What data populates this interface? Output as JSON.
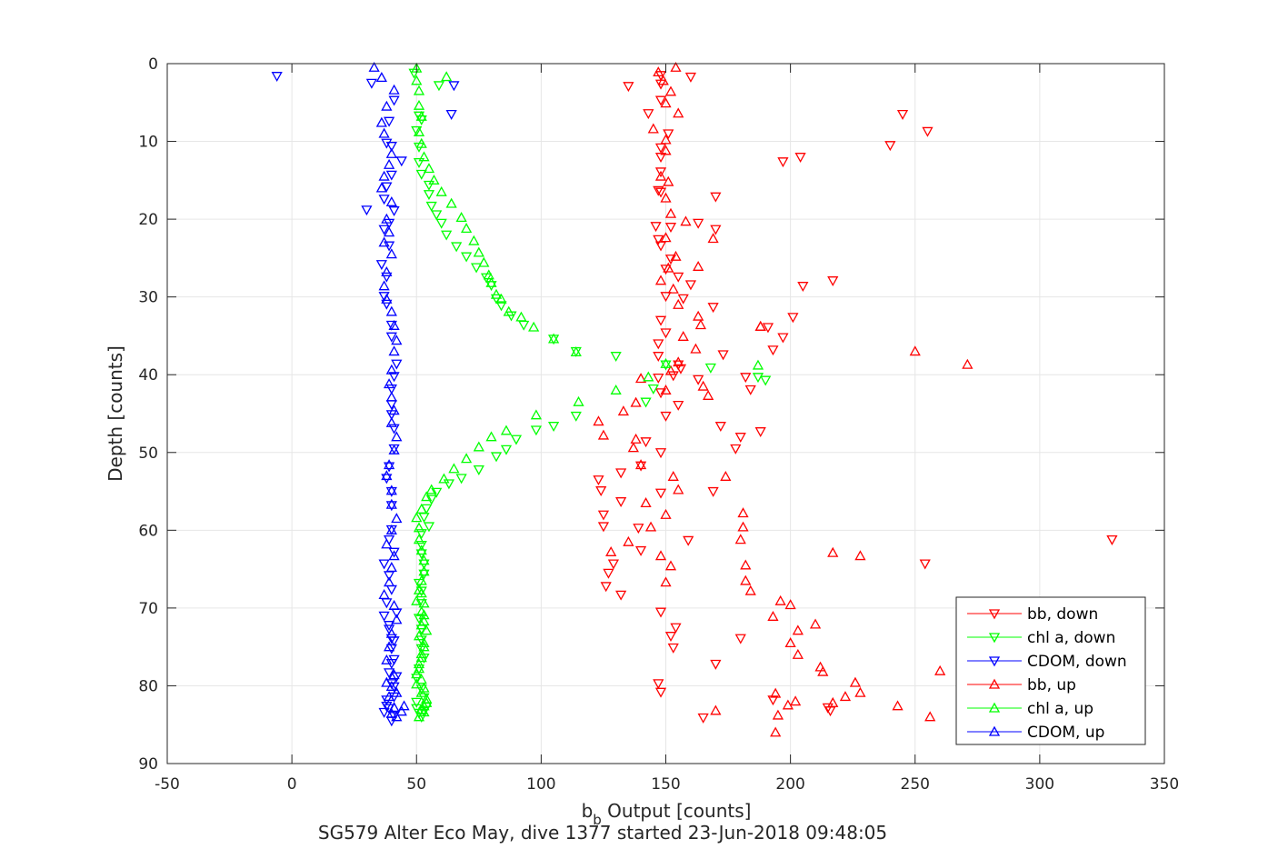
{
  "chart_data": {
    "type": "scatter",
    "xlabel_main": "b",
    "xlabel_sub": "b",
    "xlabel_rest": " Output [counts]",
    "ylabel": "Depth [counts]",
    "caption": "SG579 Alter Eco May, dive 1377 started 23-Jun-2018 09:48:05",
    "xlim": [
      -50,
      350
    ],
    "ylim": [
      0,
      90
    ],
    "y_reversed": true,
    "grid": true,
    "xticks": [
      -50,
      0,
      50,
      100,
      150,
      200,
      250,
      300,
      350
    ],
    "yticks": [
      0,
      10,
      20,
      30,
      40,
      50,
      60,
      70,
      80,
      90
    ],
    "legend_position": "bottom-right",
    "colors": {
      "bb": "#ff0000",
      "chl": "#00ff00",
      "cdom": "#0000ff",
      "axis": "#262626",
      "grid": "#e6e6e6"
    },
    "series": [
      {
        "name": "bb, down",
        "marker": "down",
        "color": "#ff0000",
        "x": [
          148,
          135,
          160,
          148,
          143,
          148,
          148,
          151,
          148,
          148,
          148,
          146,
          147,
          152,
          148,
          152,
          150,
          155,
          160,
          157,
          150,
          169,
          148,
          150,
          147,
          147,
          155,
          156,
          163,
          153,
          147,
          148,
          155,
          150,
          172,
          188,
          142,
          148,
          140,
          132,
          123,
          124,
          132,
          125,
          125,
          139,
          140,
          129,
          127,
          126,
          132,
          148,
          154,
          152,
          153,
          170,
          147,
          148,
          193,
          215,
          216,
          165,
          159,
          169,
          178,
          180,
          184,
          182,
          173,
          193,
          197,
          191,
          201,
          205,
          217,
          170,
          163,
          170,
          147,
          197,
          204,
          240,
          255,
          245,
          329,
          254,
          148,
          180
        ],
        "y": [
          1.5,
          2.9,
          1.7,
          2.6,
          6.4,
          4.7,
          10.8,
          9.0,
          12.0,
          13.9,
          16.5,
          20.9,
          22.6,
          21.0,
          23.4,
          25.1,
          26.4,
          27.4,
          28.4,
          30.2,
          29.9,
          31.3,
          33.0,
          34.6,
          36.0,
          37.6,
          38.7,
          39.2,
          40.6,
          40.1,
          40.4,
          42.3,
          43.9,
          45.3,
          46.6,
          47.3,
          48.6,
          50.0,
          51.7,
          52.6,
          53.5,
          54.9,
          56.3,
          58.0,
          59.5,
          59.7,
          62.6,
          64.3,
          65.5,
          67.2,
          68.3,
          70.5,
          72.5,
          73.6,
          75.1,
          77.2,
          79.7,
          80.8,
          81.8,
          82.8,
          83.2,
          84.1,
          61.3,
          55.0,
          49.5,
          48.0,
          41.9,
          40.3,
          37.4,
          36.8,
          35.2,
          33.9,
          32.6,
          28.6,
          27.9,
          21.3,
          20.5,
          17.1,
          16.3,
          12.6,
          12.0,
          10.5,
          8.7,
          6.5,
          61.2,
          64.3,
          55.2,
          73.9
        ]
      },
      {
        "name": "chl a, down",
        "marker": "down",
        "color": "#00ff00",
        "x": [
          49,
          59,
          51,
          52,
          50,
          51,
          51,
          52,
          55,
          55,
          56,
          58,
          60,
          62,
          66,
          70,
          74,
          78,
          80,
          82,
          84,
          88,
          93,
          105,
          114,
          130,
          150,
          168,
          187,
          190,
          145,
          142,
          114,
          105,
          98,
          90,
          86,
          82,
          75,
          68,
          63,
          58,
          56,
          54,
          53,
          55,
          52,
          52,
          52,
          53,
          53,
          51,
          52,
          52,
          51,
          52,
          52,
          52,
          53,
          51,
          50,
          52,
          53,
          54,
          53,
          52,
          51,
          50,
          50
        ],
        "y": [
          1.2,
          2.8,
          6.7,
          7.2,
          8.6,
          10.7,
          12.7,
          14.2,
          15.6,
          16.8,
          18.3,
          19.4,
          20.5,
          22.0,
          23.5,
          24.8,
          26.2,
          27.5,
          28.5,
          30.2,
          31.1,
          32.4,
          33.6,
          35.4,
          37.0,
          37.6,
          38.7,
          39.1,
          40.3,
          40.7,
          41.8,
          43.5,
          45.3,
          46.6,
          47.1,
          48.3,
          49.6,
          50.5,
          52.2,
          53.3,
          54.0,
          55.1,
          56.0,
          57.2,
          58.3,
          59.5,
          60.4,
          61.9,
          63.0,
          64.3,
          65.6,
          66.8,
          67.8,
          69.4,
          71.3,
          72.7,
          74.1,
          75.2,
          76.4,
          77.8,
          79.0,
          80.4,
          81.5,
          82.7,
          83.3,
          84.0,
          83.5,
          82.9,
          82.1
        ]
      },
      {
        "name": "CDOM, down",
        "marker": "down",
        "color": "#0000ff",
        "x": [
          -6,
          32,
          41,
          39,
          38,
          40,
          44,
          40,
          38,
          37,
          41,
          30,
          39,
          37,
          39,
          36,
          38,
          37,
          38,
          40,
          40,
          42,
          41,
          40,
          40,
          40,
          41,
          41,
          39,
          38,
          40,
          40,
          40,
          39,
          41,
          37,
          39,
          40,
          38,
          37,
          39,
          41,
          40,
          40,
          42,
          41,
          38,
          38,
          37,
          41,
          40,
          39,
          41,
          40,
          39,
          41,
          40,
          39,
          42,
          65,
          64
        ],
        "y": [
          1.6,
          2.5,
          4.7,
          7.4,
          10.2,
          10.6,
          12.5,
          14.3,
          15.8,
          17.4,
          18.9,
          18.8,
          20.5,
          21.3,
          23.4,
          25.8,
          27.4,
          29.9,
          30.9,
          33.6,
          35.1,
          38.6,
          40.2,
          41.8,
          43.8,
          45.1,
          46.9,
          49.5,
          51.8,
          53.3,
          55.0,
          56.8,
          59.9,
          61.2,
          62.8,
          64.3,
          65.8,
          67.6,
          69.3,
          71.0,
          72.7,
          74.2,
          75.2,
          77.1,
          78.8,
          80.1,
          81.8,
          82.6,
          83.4,
          83.9,
          84.5,
          82.9,
          81.4,
          79.7,
          78.3,
          76.6,
          73.9,
          72.2,
          70.6,
          2.8,
          6.5
        ]
      },
      {
        "name": "bb, up",
        "marker": "up",
        "color": "#ff0000",
        "x": [
          154,
          147,
          149,
          152,
          150,
          155,
          145,
          150,
          150,
          148,
          151,
          150,
          152,
          158,
          150,
          154,
          151,
          148,
          153,
          155,
          163,
          164,
          157,
          162,
          155,
          152,
          165,
          167,
          188,
          140,
          150,
          138,
          133,
          123,
          125,
          138,
          137,
          140,
          153,
          155,
          142,
          150,
          144,
          135,
          128,
          148,
          152,
          150,
          169,
          163,
          174,
          188,
          250,
          271,
          217,
          228,
          181,
          181,
          180,
          182,
          182,
          184,
          200,
          196,
          193,
          203,
          200,
          203,
          212,
          213,
          226,
          228,
          217,
          222,
          243,
          256,
          260,
          210,
          170,
          194,
          199,
          202,
          195,
          194
        ],
        "y": [
          0.5,
          1.1,
          2.2,
          3.6,
          5.1,
          6.4,
          8.4,
          9.8,
          11.2,
          14.5,
          15.2,
          17.3,
          19.3,
          20.3,
          22.4,
          24.8,
          26.3,
          27.9,
          29.0,
          31.0,
          32.5,
          33.6,
          35.1,
          36.7,
          38.4,
          39.5,
          41.5,
          42.7,
          33.8,
          40.5,
          42.0,
          43.6,
          44.7,
          46.0,
          47.8,
          48.3,
          49.4,
          51.6,
          53.1,
          54.8,
          56.5,
          58.0,
          59.6,
          61.5,
          62.8,
          63.3,
          64.6,
          66.7,
          22.5,
          26.1,
          53.1,
          33.8,
          37.0,
          38.7,
          62.9,
          63.3,
          57.8,
          59.6,
          61.2,
          64.5,
          66.5,
          67.8,
          69.6,
          69.1,
          71.1,
          72.9,
          74.5,
          76.0,
          77.6,
          78.2,
          79.6,
          80.9,
          82.2,
          81.4,
          82.6,
          84.0,
          78.1,
          72.1,
          83.2,
          81.0,
          82.5,
          82.0,
          83.8,
          86.0
        ]
      },
      {
        "name": "chl a, up",
        "marker": "up",
        "color": "#00ff00",
        "x": [
          50,
          62,
          50,
          51,
          51,
          52,
          51,
          52,
          53,
          55,
          57,
          60,
          64,
          68,
          70,
          73,
          75,
          77,
          79,
          80,
          82,
          84,
          87,
          92,
          97,
          105,
          114,
          150,
          187,
          143,
          130,
          115,
          98,
          86,
          80,
          75,
          70,
          65,
          61,
          56,
          54,
          52,
          50,
          51,
          51,
          52,
          53,
          53,
          52,
          51,
          50,
          52,
          53,
          54,
          53,
          52,
          51,
          50,
          50,
          52,
          54,
          53,
          51,
          52,
          53,
          54,
          53,
          52,
          51,
          52,
          53,
          51,
          52,
          53,
          53,
          52
        ],
        "y": [
          0.6,
          1.7,
          2.2,
          3.5,
          5.4,
          6.8,
          8.8,
          10.3,
          12.0,
          13.5,
          15.0,
          16.5,
          18.0,
          19.8,
          21.2,
          22.8,
          24.3,
          25.6,
          27.2,
          28.2,
          29.7,
          30.3,
          31.9,
          32.6,
          33.9,
          35.4,
          37.1,
          38.6,
          38.8,
          40.3,
          42.0,
          43.5,
          45.2,
          47.2,
          48.0,
          49.3,
          50.8,
          52.1,
          53.4,
          54.8,
          55.7,
          57.3,
          58.4,
          59.7,
          61.2,
          62.6,
          63.9,
          65.3,
          66.5,
          67.7,
          69.1,
          70.5,
          71.7,
          72.9,
          74.5,
          75.9,
          77.2,
          78.5,
          79.8,
          80.9,
          82.2,
          83.4,
          84.0,
          83.1,
          82.6,
          81.7,
          80.3,
          79.2,
          77.8,
          76.4,
          75.0,
          73.6,
          72.2,
          70.9,
          69.4,
          68.1
        ]
      },
      {
        "name": "CDOM, up",
        "marker": "up",
        "color": "#0000ff",
        "x": [
          33,
          36,
          41,
          38,
          36,
          37,
          40,
          39,
          37,
          36,
          40,
          38,
          39,
          37,
          40,
          38,
          37,
          38,
          40,
          41,
          42,
          41,
          40,
          39,
          40,
          41,
          40,
          42,
          41,
          39,
          38,
          40,
          40,
          42,
          40,
          38,
          41,
          40,
          39,
          37,
          41,
          42,
          40,
          39,
          38,
          41,
          40,
          39,
          41,
          40,
          42,
          44,
          45,
          42,
          38
        ],
        "y": [
          0.5,
          1.8,
          3.4,
          5.5,
          7.6,
          9.0,
          11.6,
          13.0,
          14.5,
          16.0,
          17.8,
          20.0,
          21.7,
          23.0,
          24.5,
          26.8,
          28.6,
          30.3,
          31.9,
          33.7,
          35.6,
          37.0,
          39.4,
          41.2,
          42.9,
          44.6,
          46.2,
          48.0,
          49.7,
          51.6,
          53.0,
          54.9,
          56.7,
          58.5,
          60.0,
          61.8,
          63.3,
          64.8,
          66.7,
          68.3,
          69.7,
          71.5,
          73.3,
          75.0,
          76.7,
          78.6,
          80.1,
          81.4,
          82.8,
          83.6,
          84.0,
          83.3,
          82.6,
          80.9,
          79.6
        ]
      }
    ]
  }
}
